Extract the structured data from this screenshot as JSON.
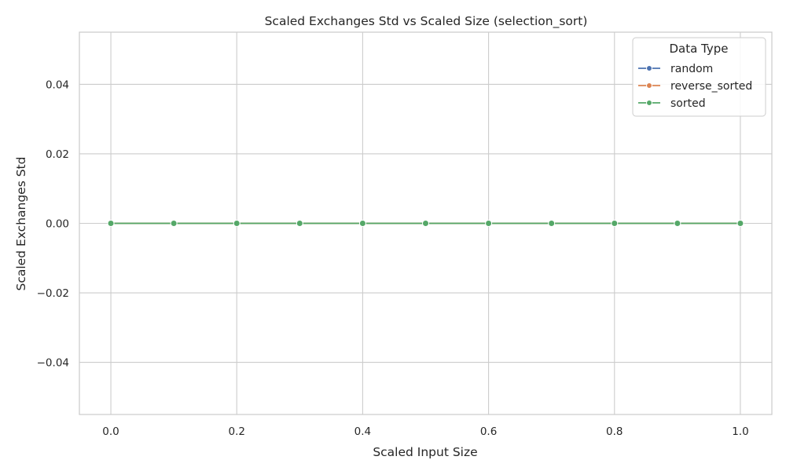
{
  "chart_data": {
    "type": "line",
    "title": "Scaled Exchanges Std vs Scaled Size (selection_sort)",
    "xlabel": "Scaled Input Size",
    "ylabel": "Scaled Exchanges Std",
    "xlim": [
      -0.05,
      1.05
    ],
    "ylim": [
      -0.055,
      0.055
    ],
    "x_ticks": [
      0.0,
      0.2,
      0.4,
      0.6,
      0.8,
      1.0
    ],
    "x_tick_labels": [
      "0.0",
      "0.2",
      "0.4",
      "0.6",
      "0.8",
      "1.0"
    ],
    "y_ticks": [
      -0.04,
      -0.02,
      0.0,
      0.02,
      0.04
    ],
    "y_tick_labels": [
      "−0.04",
      "−0.02",
      "0.00",
      "0.02",
      "0.04"
    ],
    "grid": true,
    "legend": {
      "title": "Data Type",
      "placement": "top-right"
    },
    "x": [
      0.0,
      0.1,
      0.2,
      0.3,
      0.4,
      0.5,
      0.6,
      0.7,
      0.8,
      0.9,
      1.0
    ],
    "series": [
      {
        "name": "random",
        "color": "#4c72b0",
        "values": [
          0,
          0,
          0,
          0,
          0,
          0,
          0,
          0,
          0,
          0,
          0
        ]
      },
      {
        "name": "reverse_sorted",
        "color": "#dd8452",
        "values": [
          0,
          0,
          0,
          0,
          0,
          0,
          0,
          0,
          0,
          0,
          0
        ]
      },
      {
        "name": "sorted",
        "color": "#55a868",
        "values": [
          0,
          0,
          0,
          0,
          0,
          0,
          0,
          0,
          0,
          0,
          0
        ]
      }
    ]
  }
}
